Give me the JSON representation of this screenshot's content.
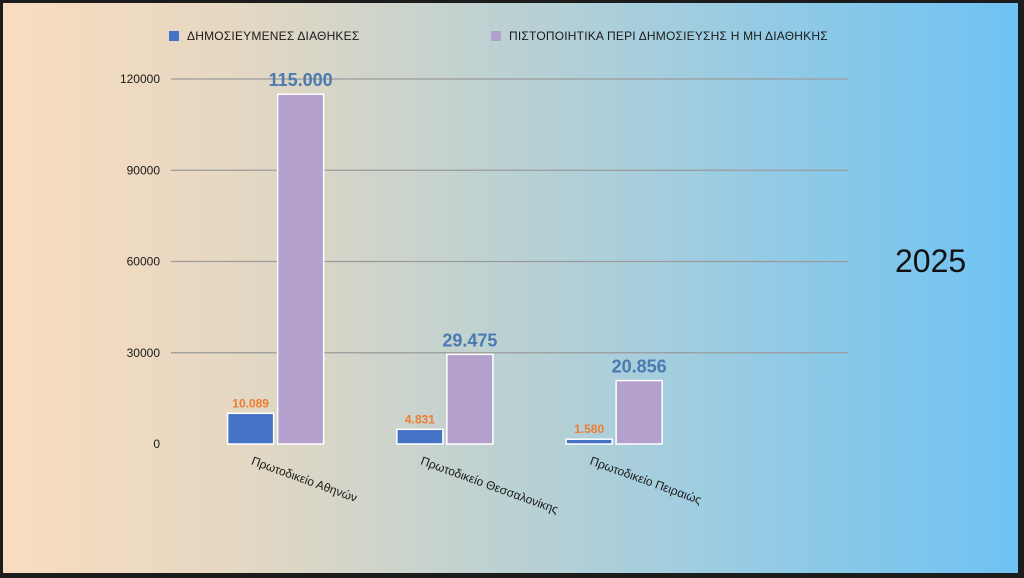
{
  "chart_data": {
    "type": "bar",
    "categories": [
      "Πρωτοδικείο Αθηνών",
      "Πρωτοδικείο Θεσσαλονίκης",
      "Πρωτοδικείο Πειραιώς"
    ],
    "series": [
      {
        "name": "ΔΗΜΟΣΙΕΥΜΕΝΕΣ ΔΙΑΘΗΚΕΣ",
        "values": [
          10089,
          4831,
          1580
        ],
        "labels": [
          "10.089",
          "4.831",
          "1.580"
        ],
        "color": "#4472c4",
        "label_color": "#ed7d31"
      },
      {
        "name": "ΠΙΣΤΟΠΟΙΗΤΙΚΑ ΠΕΡΙ ΔΗΜΟΣΙΕΥΣΗΣ Η ΜΗ ΔΙΑΘΗΚΗΣ",
        "values": [
          115000,
          29475,
          20856
        ],
        "labels": [
          "115.000",
          "29.475",
          "20.856"
        ],
        "color": "#b4a0cc",
        "label_color": "#4a7ab0"
      }
    ],
    "yticks": [
      "0",
      "30000",
      "60000",
      "90000",
      "120000"
    ],
    "ylim": [
      0,
      120000
    ],
    "grid": true,
    "legend": "top"
  },
  "year_label": "2025"
}
